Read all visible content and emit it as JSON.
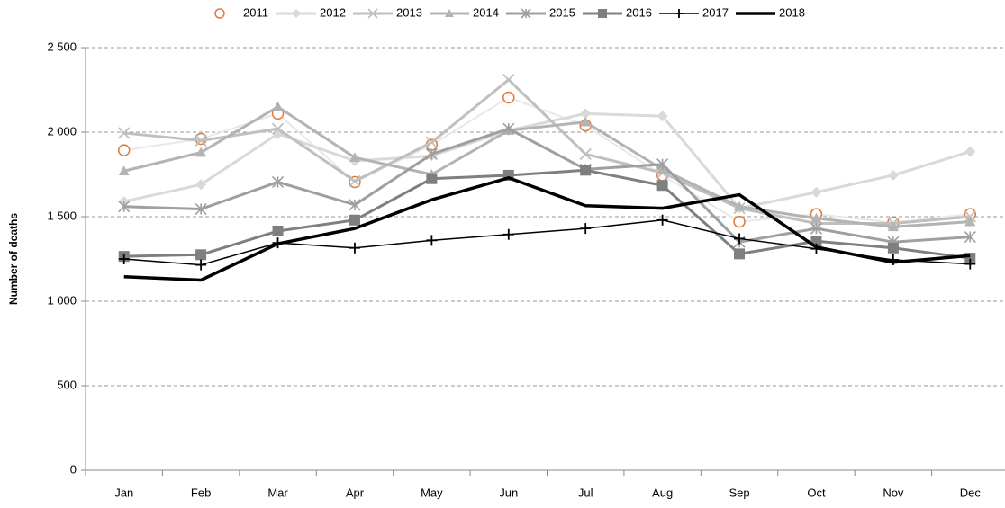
{
  "chart_data": {
    "type": "line",
    "y_label": "Number of deaths",
    "categories": [
      "Jan",
      "Feb",
      "Mar",
      "Apr",
      "May",
      "Jun",
      "Jul",
      "Aug",
      "Sep",
      "Oct",
      "Nov",
      "Dec"
    ],
    "series": [
      {
        "name": "2011",
        "color": "#e8e8e8",
        "marker_color": "#e07b39",
        "marker": "circle",
        "line_width": 2,
        "values": [
          1893,
          1960,
          2110,
          1705,
          1925,
          2205,
          2040,
          1745,
          1470,
          1515,
          1465,
          1515
        ]
      },
      {
        "name": "2012",
        "color": "#d9d9d9",
        "marker": "diamond",
        "line_width": 3,
        "values": [
          1590,
          1690,
          1990,
          1830,
          1860,
          2010,
          2110,
          2095,
          1550,
          1645,
          1745,
          1885
        ]
      },
      {
        "name": "2013",
        "color": "#bfbfbf",
        "marker": "x",
        "line_width": 3,
        "values": [
          1995,
          1950,
          2020,
          1710,
          1940,
          2310,
          1870,
          1760,
          1550,
          1460,
          1460,
          1500
        ]
      },
      {
        "name": "2014",
        "color": "#b3b3b3",
        "marker": "triangle",
        "line_width": 3,
        "values": [
          1770,
          1880,
          2150,
          1850,
          1750,
          2010,
          2060,
          1780,
          1560,
          1490,
          1440,
          1470
        ]
      },
      {
        "name": "2015",
        "color": "#9f9f9f",
        "marker": "asterisk",
        "line_width": 3,
        "values": [
          1560,
          1545,
          1705,
          1570,
          1870,
          2020,
          1780,
          1810,
          1350,
          1430,
          1350,
          1380
        ]
      },
      {
        "name": "2016",
        "color": "#7f7f7f",
        "marker": "square",
        "line_width": 3,
        "values": [
          1265,
          1275,
          1415,
          1480,
          1725,
          1745,
          1775,
          1685,
          1280,
          1355,
          1315,
          1255
        ]
      },
      {
        "name": "2017",
        "color": "#000000",
        "marker": "plus",
        "line_width": 1.5,
        "values": [
          1250,
          1215,
          1345,
          1315,
          1360,
          1395,
          1430,
          1480,
          1370,
          1310,
          1245,
          1220
        ]
      },
      {
        "name": "2018",
        "color": "#000000",
        "marker": "none",
        "line_width": 3.5,
        "values": [
          1145,
          1125,
          1340,
          1430,
          1600,
          1730,
          1565,
          1550,
          1630,
          1320,
          1230,
          1270
        ]
      }
    ],
    "ylim": [
      0,
      2500
    ],
    "yticks": [
      0,
      500,
      {
        "value": 1000,
        "label": "1 000"
      },
      {
        "value": 1500,
        "label": "1 500"
      },
      {
        "value": 2000,
        "label": "2 000"
      },
      {
        "value": 2500,
        "label": "2 500"
      }
    ],
    "grid": true,
    "legend": "top"
  }
}
